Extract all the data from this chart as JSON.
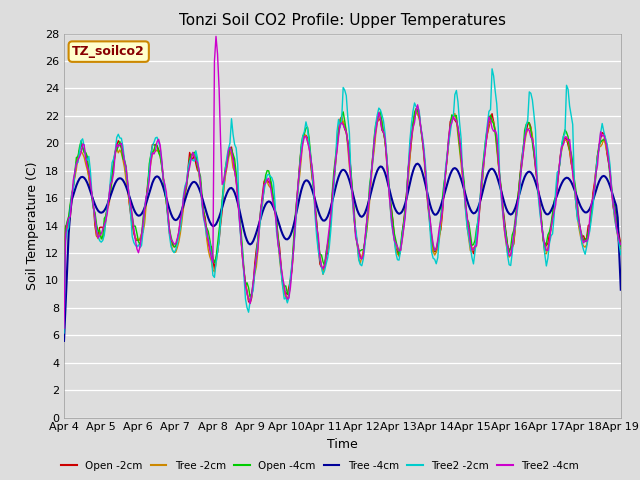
{
  "title": "Tonzi Soil CO2 Profile: Upper Temperatures",
  "ylabel": "Soil Temperature (C)",
  "xlabel": "Time",
  "annotation": "TZ_soilco2",
  "xlim": [
    0,
    360
  ],
  "ylim": [
    0,
    28
  ],
  "yticks": [
    0,
    2,
    4,
    6,
    8,
    10,
    12,
    14,
    16,
    18,
    20,
    22,
    24,
    26,
    28
  ],
  "xtick_labels": [
    "Apr 4",
    "Apr 5",
    "Apr 6",
    "Apr 7",
    "Apr 8",
    "Apr 9",
    "Apr 10",
    "Apr 11",
    "Apr 12",
    "Apr 13",
    "Apr 14",
    "Apr 15",
    "Apr 16",
    "Apr 17",
    "Apr 18",
    "Apr 19"
  ],
  "series": [
    {
      "name": "Open -2cm",
      "color": "#cc0000"
    },
    {
      "name": "Tree -2cm",
      "color": "#cc8800"
    },
    {
      "name": "Open -4cm",
      "color": "#00cc00"
    },
    {
      "name": "Tree -4cm",
      "color": "#000099"
    },
    {
      "name": "Tree2 -2cm",
      "color": "#00cccc"
    },
    {
      "name": "Tree2 -4cm",
      "color": "#cc00cc"
    }
  ],
  "bg_color": "#dddddd",
  "fig_color": "#dddddd",
  "grid_color": "#ffffff",
  "title_fontsize": 11,
  "axis_fontsize": 9,
  "tick_fontsize": 8
}
